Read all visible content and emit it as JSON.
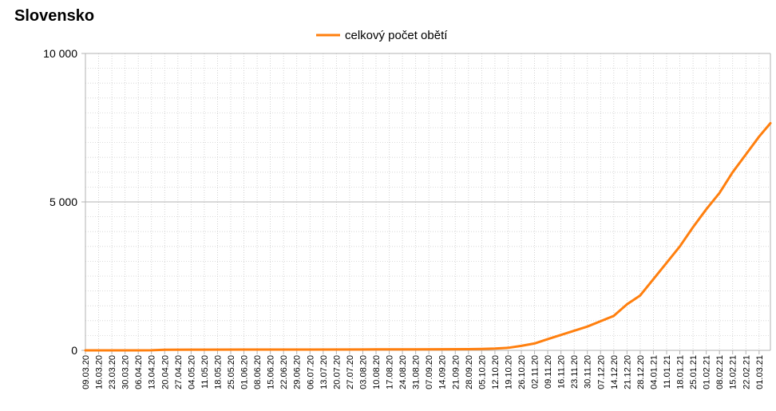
{
  "title": "Slovensko",
  "chart_data": {
    "type": "line",
    "title": "Slovensko",
    "xlabel": "",
    "ylabel": "",
    "ylim": [
      0,
      10000
    ],
    "yticks": [
      {
        "value": 0,
        "label": "0"
      },
      {
        "value": 5000,
        "label": "5 000"
      },
      {
        "value": 10000,
        "label": "10 000"
      }
    ],
    "y_minor_step": 500,
    "grid": true,
    "legend": "top-center",
    "x_start": "09.03.20",
    "x_end": "07.03.21",
    "x_labels": [
      "09.03.20",
      "16.03.20",
      "23.03.20",
      "30.03.20",
      "06.04.20",
      "13.04.20",
      "20.04.20",
      "27.04.20",
      "04.05.20",
      "11.05.20",
      "18.05.20",
      "25.05.20",
      "01.06.20",
      "08.06.20",
      "15.06.20",
      "22.06.20",
      "29.06.20",
      "06.07.20",
      "13.07.20",
      "20.07.20",
      "27.07.20",
      "03.08.20",
      "10.08.20",
      "17.08.20",
      "24.08.20",
      "31.08.20",
      "07.09.20",
      "14.09.20",
      "21.09.20",
      "28.09.20",
      "05.10.20",
      "12.10.20",
      "19.10.20",
      "26.10.20",
      "02.11.20",
      "09.11.20",
      "16.11.20",
      "23.11.20",
      "30.11.20",
      "07.12.20",
      "14.12.20",
      "21.12.20",
      "28.12.20",
      "04.01.21",
      "11.01.21",
      "18.01.21",
      "25.01.21",
      "01.02.21",
      "08.02.21",
      "15.02.21",
      "22.02.21",
      "01.03.21"
    ],
    "series": [
      {
        "name": "celkový počet obětí",
        "color": "#ff7f0e",
        "points": [
          [
            "09.03.20",
            0
          ],
          [
            "06.04.20",
            1
          ],
          [
            "13.04.20",
            2
          ],
          [
            "20.04.20",
            20
          ],
          [
            "04.05.20",
            25
          ],
          [
            "01.06.20",
            28
          ],
          [
            "06.07.20",
            28
          ],
          [
            "03.08.20",
            30
          ],
          [
            "10.08.20",
            33
          ],
          [
            "31.08.20",
            36
          ],
          [
            "28.09.20",
            40
          ],
          [
            "05.10.20",
            48
          ],
          [
            "12.10.20",
            60
          ],
          [
            "19.10.20",
            85
          ],
          [
            "26.10.20",
            150
          ],
          [
            "02.11.20",
            230
          ],
          [
            "09.11.20",
            380
          ],
          [
            "16.11.20",
            520
          ],
          [
            "23.11.20",
            660
          ],
          [
            "30.11.20",
            800
          ],
          [
            "07.12.20",
            980
          ],
          [
            "14.12.20",
            1160
          ],
          [
            "21.12.20",
            1550
          ],
          [
            "28.12.20",
            1850
          ],
          [
            "04.01.21",
            2400
          ],
          [
            "11.01.21",
            2950
          ],
          [
            "18.01.21",
            3500
          ],
          [
            "25.01.21",
            4150
          ],
          [
            "01.02.21",
            4750
          ],
          [
            "08.02.21",
            5300
          ],
          [
            "15.02.21",
            6000
          ],
          [
            "22.02.21",
            6600
          ],
          [
            "01.03.21",
            7200
          ],
          [
            "07.03.21",
            7650
          ]
        ]
      }
    ]
  }
}
